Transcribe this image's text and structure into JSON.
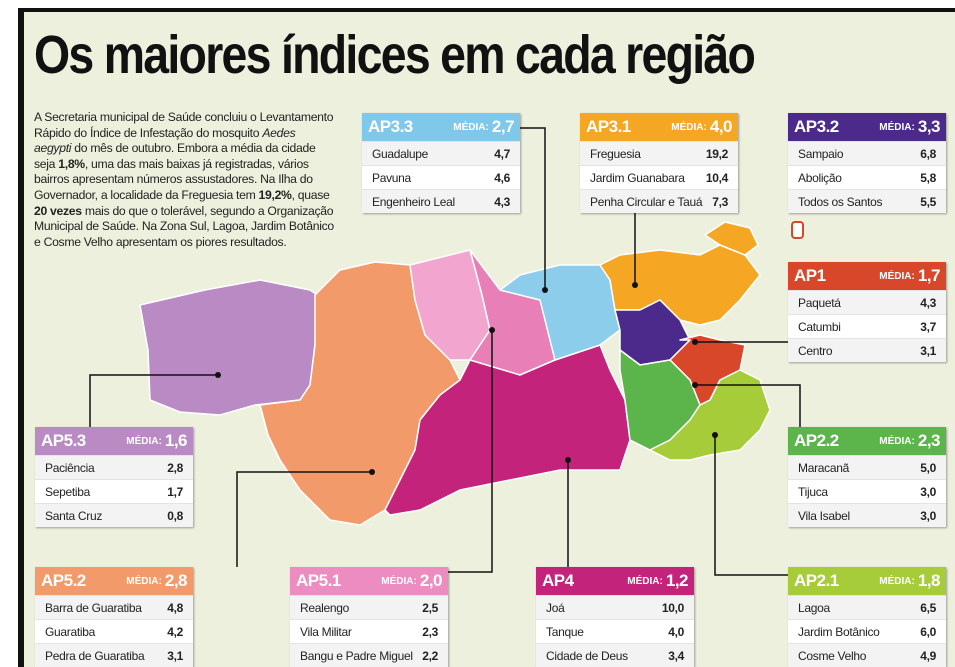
{
  "title": "Os maiores índices em cada região",
  "intro": [
    "A Secretaria municipal de Saúde concluiu o Levantamento Rápido do Índice de Infestação do mosquito ",
    "Aedes aegypti",
    " do mês de outubro. Embora a média da cidade seja ",
    "1,8%",
    ", uma das mais baixas já registradas, vários bairros apresentam números assustadores. Na Ilha do Governador, a localidade da Freguesia tem ",
    "19,2%",
    ", quase ",
    "20 vezes",
    " mais do que o tolerável, segundo a Organização Municipal de Saúde. Na Zona Sul, Lagoa, Jardim Botânico e Cosme Velho apresentam os piores resultados."
  ],
  "regions": [
    {
      "name": "AP3.3",
      "media_label": "MÉDIA:",
      "media": "2,7",
      "rows": [
        [
          "Guadalupe",
          "4,7"
        ],
        [
          "Pavuna",
          "4,6"
        ],
        [
          "Engenheiro Leal",
          "4,3"
        ]
      ]
    },
    {
      "name": "AP3.1",
      "media_label": "MÉDIA:",
      "media": "4,0",
      "rows": [
        [
          "Freguesia",
          "19,2"
        ],
        [
          "Jardim Guanabara",
          "10,4"
        ],
        [
          "Penha Circular e Tauá",
          "7,3"
        ]
      ]
    },
    {
      "name": "AP3.2",
      "media_label": "MÉDIA:",
      "media": "3,3",
      "rows": [
        [
          "Sampaio",
          "6,8"
        ],
        [
          "Abolição",
          "5,8"
        ],
        [
          "Todos os Santos",
          "5,5"
        ]
      ]
    },
    {
      "name": "AP1",
      "media_label": "MÉDIA:",
      "media": "1,7",
      "rows": [
        [
          "Paquetá",
          "4,3"
        ],
        [
          "Catumbi",
          "3,7"
        ],
        [
          "Centro",
          "3,1"
        ]
      ]
    },
    {
      "name": "AP5.3",
      "media_label": "MÉDIA:",
      "media": "1,6",
      "rows": [
        [
          "Paciência",
          "2,8"
        ],
        [
          "Sepetiba",
          "1,7"
        ],
        [
          "Santa Cruz",
          "0,8"
        ]
      ]
    },
    {
      "name": "AP2.2",
      "media_label": "MÉDIA:",
      "media": "2,3",
      "rows": [
        [
          "Maracanã",
          "5,0"
        ],
        [
          "Tijuca",
          "3,0"
        ],
        [
          "Vila Isabel",
          "3,0"
        ]
      ]
    },
    {
      "name": "AP5.2",
      "media_label": "MÉDIA:",
      "media": "2,8",
      "rows": [
        [
          "Barra de Guaratiba",
          "4,8"
        ],
        [
          "Guaratiba",
          "4,2"
        ],
        [
          "Pedra de Guaratiba",
          "3,1"
        ]
      ]
    },
    {
      "name": "AP5.1",
      "media_label": "MÉDIA:",
      "media": "2,0",
      "rows": [
        [
          "Realengo",
          "2,5"
        ],
        [
          "Vila Militar",
          "2,3"
        ],
        [
          "Bangu e Padre Miguel",
          "2,2"
        ]
      ]
    },
    {
      "name": "AP4",
      "media_label": "MÉDIA:",
      "media": "1,2",
      "rows": [
        [
          "Joá",
          "10,0"
        ],
        [
          "Tanque",
          "4,0"
        ],
        [
          "Cidade de Deus",
          "3,4"
        ]
      ]
    },
    {
      "name": "AP2.1",
      "media_label": "MÉDIA:",
      "media": "1,8",
      "rows": [
        [
          "Lagoa",
          "6,5"
        ],
        [
          "Jardim Botânico",
          "6,0"
        ],
        [
          "Cosme Velho",
          "4,9"
        ]
      ]
    }
  ]
}
